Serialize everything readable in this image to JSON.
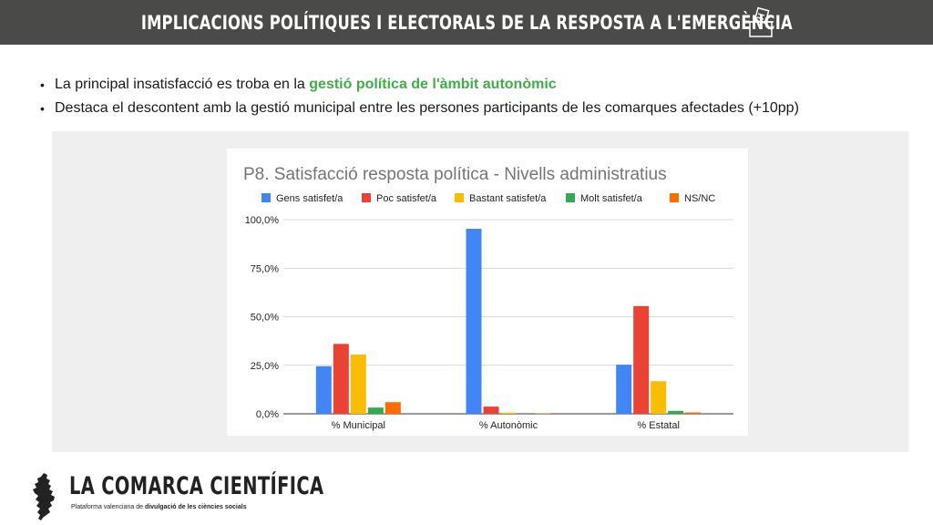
{
  "header": {
    "title": "IMPLICACIONS POLÍTIQUES I ELECTORALS DE LA RESPOSTA A L'EMERGÈNCIA",
    "icon": "ballot-box-icon"
  },
  "bullets": [
    {
      "before": "La principal insatisfacció es troba en la ",
      "highlight": "gestió política de l'àmbit autonòmic",
      "after": ""
    },
    {
      "before": "Destaca el descontent amb la gestió municipal entre les persones participants de les comarques afectades (+10pp)",
      "highlight": "",
      "after": ""
    }
  ],
  "colors": {
    "header_bg": "#4a4a48",
    "highlight": "#3fae49",
    "panel_bg": "#efefef"
  },
  "chart_data": {
    "type": "bar",
    "title": "P8. Satisfacció resposta política - Nivells administratius",
    "categories": [
      "% Municipal",
      "% Autonòmic",
      "% Estatal"
    ],
    "series": [
      {
        "name": "Gens satisfet/a",
        "color": "#4285f4",
        "values": [
          24.5,
          95.3,
          25.3
        ]
      },
      {
        "name": "Poc satisfet/a",
        "color": "#ea4335",
        "values": [
          36.0,
          3.7,
          55.5
        ]
      },
      {
        "name": "Bastant satisfet/a",
        "color": "#fbbc04",
        "values": [
          30.5,
          0.6,
          16.8
        ]
      },
      {
        "name": "Molt satisfet/a",
        "color": "#34a853",
        "values": [
          3.2,
          0.0,
          1.5
        ]
      },
      {
        "name": "NS/NC",
        "color": "#ff6d01",
        "values": [
          6.0,
          0.2,
          0.7
        ]
      }
    ],
    "ylim": [
      0,
      100
    ],
    "yticks": [
      "0,0%",
      "25,0%",
      "50,0%",
      "75,0%",
      "100,0%"
    ],
    "grid": true,
    "legend": "top"
  },
  "footer": {
    "brand": "LA COMARCA CIENTÍFICA",
    "tagline_before": "Plataforma valenciana de ",
    "tagline_bold": "divulgació de les ciències socials",
    "logo_icon": "valencia-map-icon"
  }
}
